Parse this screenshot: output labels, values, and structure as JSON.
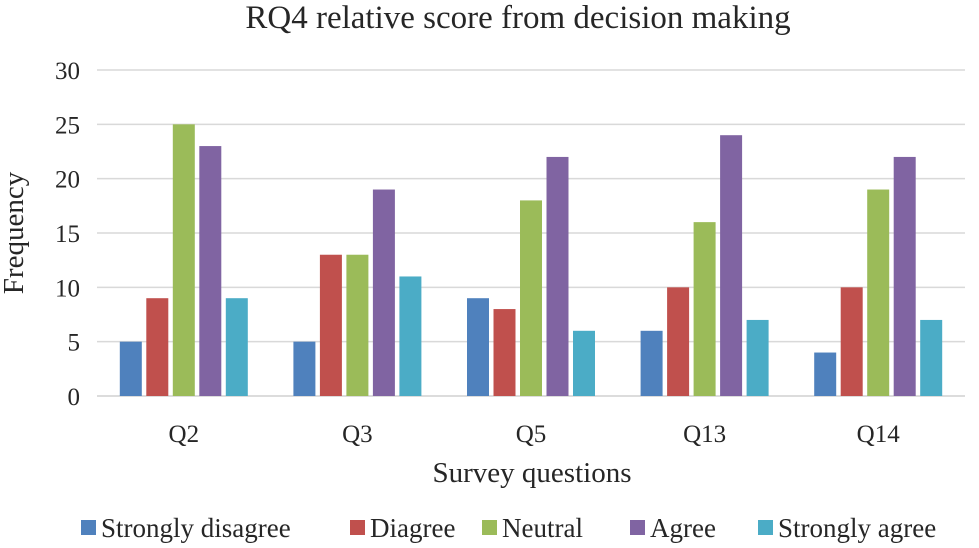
{
  "chart_data": {
    "type": "bar",
    "title": "RQ4 relative score from decision making",
    "xlabel": "Survey questions",
    "ylabel": "Frequency",
    "ylim": [
      0,
      30
    ],
    "yticks": [
      0,
      5,
      10,
      15,
      20,
      25,
      30
    ],
    "grid": true,
    "legend_position": "bottom",
    "categories": [
      "Q2",
      "Q3",
      "Q5",
      "Q13",
      "Q14"
    ],
    "series": [
      {
        "name": "Strongly disagree",
        "color": "#4f81bd",
        "values": [
          5,
          5,
          9,
          6,
          4
        ]
      },
      {
        "name": "Diagree",
        "color": "#c0504d",
        "values": [
          9,
          13,
          8,
          10,
          10
        ]
      },
      {
        "name": "Neutral",
        "color": "#9bbb59",
        "values": [
          25,
          13,
          18,
          16,
          19
        ]
      },
      {
        "name": "Agree",
        "color": "#8064a2",
        "values": [
          23,
          19,
          22,
          24,
          22
        ]
      },
      {
        "name": "Strongly agree",
        "color": "#4bacc6",
        "values": [
          9,
          11,
          6,
          7,
          7
        ]
      }
    ]
  }
}
